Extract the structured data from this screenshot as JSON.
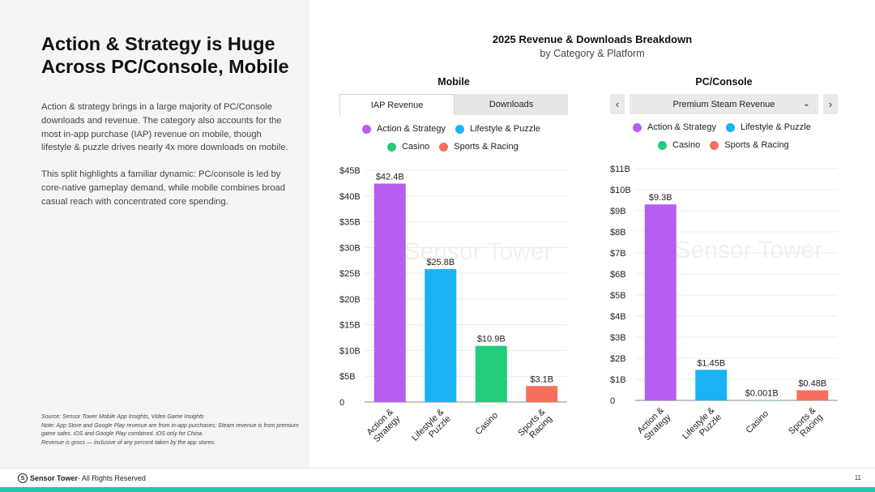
{
  "slide": {
    "headline": "Action & Strategy is Huge Across PC/Console, Mobile",
    "paragraphs": [
      "Action & strategy brings in a large majority of PC/Console downloads and revenue. The category also accounts for the most in-app purchase (IAP) revenue on mobile, though lifestyle & puzzle drives nearly 4x more downloads on mobile.",
      "This split highlights a familiar dynamic: PC/console is led by core-native gameplay demand, while mobile combines broad casual reach with concentrated core spending."
    ],
    "footnote": [
      "Source: Sensor Tower Mobile App Insights, Video Game Insights",
      "Note: App Store and Google Play revenue are from in-app purchases; Steam revenue is from premium game sales. iOS and Google Play combined. iOS only for China.",
      "Revenue is gross — inclusive of any percent taken by the app stores."
    ],
    "footer": {
      "brand": "Sensor Tower",
      "rights": " - All Rights Reserved",
      "page_number": "11"
    },
    "accent_color": "#22c3b0"
  },
  "chart_header": {
    "title": "2025 Revenue & Downloads Breakdown",
    "subtitle": "by Category & Platform"
  },
  "mobile_panel": {
    "title": "Mobile",
    "tabs": [
      {
        "label": "IAP Revenue",
        "active": true
      },
      {
        "label": "Downloads",
        "active": false
      }
    ]
  },
  "pc_panel": {
    "title": "PC/Console",
    "prev_icon": "‹",
    "next_icon": "›",
    "dropdown_value": "Premium Steam Revenue",
    "dropdown_icon": "⌄"
  },
  "legend": [
    {
      "name": "Action & Strategy",
      "color": "#b65ef0"
    },
    {
      "name": "Lifestyle & Puzzle",
      "color": "#1ab2f5"
    },
    {
      "name": "Casino",
      "color": "#22cc7a"
    },
    {
      "name": "Sports & Racing",
      "color": "#f5705e"
    }
  ],
  "chart_data": [
    {
      "type": "bar",
      "panel": "Mobile",
      "metric": "IAP Revenue",
      "categories": [
        "Action & Strategy",
        "Lifestyle & Puzzle",
        "Casino",
        "Sports & Racing"
      ],
      "category_tick_lines": [
        [
          "Action &",
          "Strategy"
        ],
        [
          "Lifestyle &",
          "Puzzle"
        ],
        [
          "Casino"
        ],
        [
          "Sports &",
          "Racing"
        ]
      ],
      "values": [
        42.4,
        25.8,
        10.9,
        3.1
      ],
      "value_labels": [
        "$42.4B",
        "$25.8B",
        "$10.9B",
        "$3.1B"
      ],
      "colors": [
        "#b65ef0",
        "#1ab2f5",
        "#22cc7a",
        "#f5705e"
      ],
      "ylim": [
        0,
        45
      ],
      "yticks": [
        0,
        5,
        10,
        15,
        20,
        25,
        30,
        35,
        40,
        45
      ],
      "ytick_labels": [
        "0",
        "$5B",
        "$10B",
        "$15B",
        "$20B",
        "$25B",
        "$30B",
        "$35B",
        "$40B",
        "$45B"
      ],
      "grid": true,
      "watermark": "Sensor Tower"
    },
    {
      "type": "bar",
      "panel": "PC/Console",
      "metric": "Premium Steam Revenue",
      "categories": [
        "Action & Strategy",
        "Lifestyle & Puzzle",
        "Casino",
        "Sports & Racing"
      ],
      "category_tick_lines": [
        [
          "Action &",
          "Strategy"
        ],
        [
          "Lifestyle &",
          "Puzzle"
        ],
        [
          "Casino"
        ],
        [
          "Sports &",
          "Racing"
        ]
      ],
      "values": [
        9.3,
        1.45,
        0.001,
        0.48
      ],
      "value_labels": [
        "$9.3B",
        "$1.45B",
        "$0.001B",
        "$0.48B"
      ],
      "colors": [
        "#b65ef0",
        "#1ab2f5",
        "#22cc7a",
        "#f5705e"
      ],
      "ylim": [
        0,
        11
      ],
      "yticks": [
        0,
        1,
        2,
        3,
        4,
        5,
        6,
        7,
        8,
        9,
        10,
        11
      ],
      "ytick_labels": [
        "0",
        "$1B",
        "$2B",
        "$3B",
        "$4B",
        "$5B",
        "$6B",
        "$7B",
        "$8B",
        "$9B",
        "$10B",
        "$11B"
      ],
      "grid": true,
      "watermark": "Sensor Tower"
    }
  ]
}
